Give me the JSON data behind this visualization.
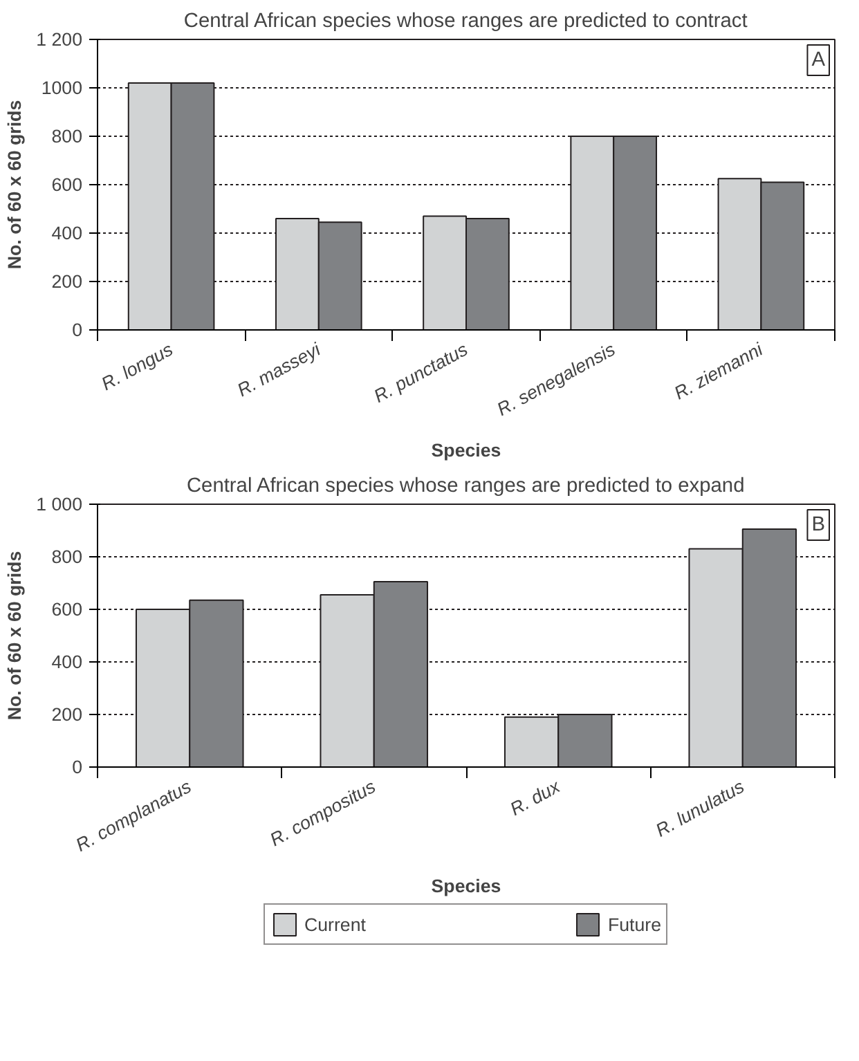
{
  "chart_data": [
    {
      "type": "bar",
      "title": "Central African species whose ranges are predicted to contract",
      "annotations": [
        "A"
      ],
      "xlabel": "Species",
      "ylabel": "No. of 60 x 60 grids",
      "categories": [
        "R. longus",
        "R. masseyi",
        "R. punctatus",
        "R. senegalensis",
        "R. ziemanni"
      ],
      "series": [
        {
          "color": "#d1d3d4",
          "values": [
            1020,
            460,
            470,
            800,
            625
          ]
        },
        {
          "color": "#808285",
          "values": [
            1020,
            445,
            460,
            800,
            610
          ]
        }
      ],
      "ylim": [
        0,
        1200
      ],
      "yticks": [
        0,
        200,
        400,
        600,
        800,
        1000,
        {
          "value": 1200,
          "label": "1 200"
        }
      ],
      "grid": "y"
    },
    {
      "type": "bar",
      "title": "Central African species whose ranges are predicted to expand",
      "annotations": [
        "B"
      ],
      "xlabel": "Species",
      "ylabel": "No. of 60 x 60 grids",
      "categories": [
        "R. complanatus",
        "R. compositus",
        "R. dux",
        "R. lunulatus"
      ],
      "series": [
        {
          "name": "Current",
          "color": "#d1d3d4",
          "values": [
            600,
            655,
            190,
            830
          ]
        },
        {
          "name": "Future",
          "color": "#808285",
          "values": [
            635,
            705,
            200,
            905
          ]
        }
      ],
      "ylim": [
        0,
        1000
      ],
      "yticks": [
        0,
        200,
        400,
        600,
        800,
        {
          "value": 1000,
          "label": "1 000"
        }
      ],
      "grid": "y",
      "legend": "bottom"
    }
  ]
}
